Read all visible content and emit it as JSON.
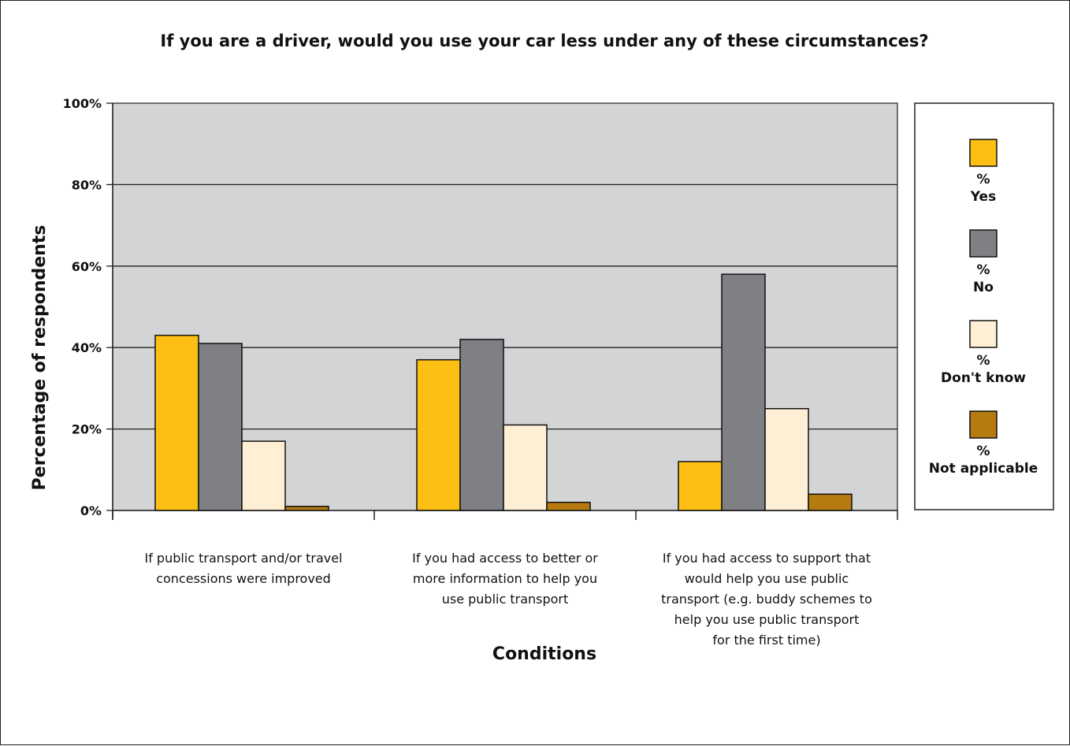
{
  "chart_data": {
    "type": "bar",
    "title": "If you are a driver, would you use your car less under any of these circumstances?",
    "xlabel": "Conditions",
    "ylabel": "Percentage of respondents",
    "ylim": [
      0,
      100
    ],
    "yticks": [
      {
        "value": 0,
        "label": "0%"
      },
      {
        "value": 20,
        "label": "20%"
      },
      {
        "value": 40,
        "label": "40%"
      },
      {
        "value": 60,
        "label": "60%"
      },
      {
        "value": 80,
        "label": "80%"
      },
      {
        "value": 100,
        "label": "100%"
      }
    ],
    "grid": true,
    "legend_position": "right",
    "categories": [
      "If public transport and/or travel concessions were improved",
      "If you had access to better or more information to help you use public transport",
      "If you had access to support that would help you use public transport (e.g. buddy schemes to help you use public transport for the first time)"
    ],
    "category_label_lines": [
      [
        "If public transport and/or travel",
        "concessions were improved"
      ],
      [
        "If you had access to better or",
        "more information to help you",
        "use public transport"
      ],
      [
        "If you had access to support that",
        "would help you use public",
        "transport (e.g. buddy schemes to",
        "help you use public transport",
        "for the first time)"
      ]
    ],
    "series": [
      {
        "name": "Yes",
        "legend_prefix": "%",
        "color": "#fdbf13",
        "values": [
          43,
          37,
          12
        ]
      },
      {
        "name": "No",
        "legend_prefix": "%",
        "color": "#7f8084",
        "values": [
          41,
          42,
          58
        ]
      },
      {
        "name": "Don't know",
        "legend_prefix": "%",
        "color": "#fff0d5",
        "values": [
          17,
          21,
          25
        ]
      },
      {
        "name": "Not applicable",
        "legend_prefix": "%",
        "color": "#b57a10",
        "values": [
          1,
          2,
          4
        ]
      }
    ],
    "plot_background": "#d3d4d6"
  }
}
